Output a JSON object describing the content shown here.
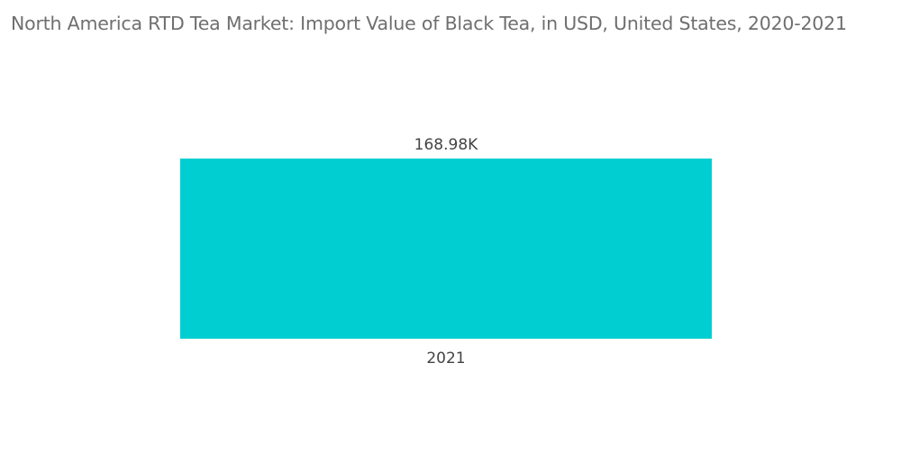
{
  "chart_data": {
    "type": "bar",
    "title": "North America RTD Tea Market: Import Value of Black Tea, in USD, United States, 2020-2021",
    "categories": [
      "2021"
    ],
    "values": [
      168.98
    ],
    "data_labels": [
      "168.98K"
    ],
    "value_unit": "K",
    "ylim": [
      0,
      168.98
    ],
    "grid": false,
    "legend": "none",
    "colors": {
      "bar": "#00CED1",
      "title": "#6F6F6F",
      "label": "#444444"
    }
  }
}
